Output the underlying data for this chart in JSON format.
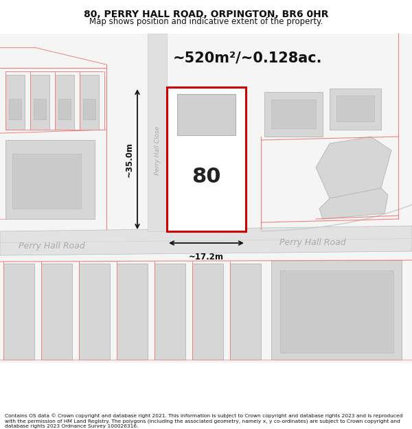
{
  "title": "80, PERRY HALL ROAD, ORPINGTON, BR6 0HR",
  "subtitle": "Map shows position and indicative extent of the property.",
  "footer": "Contains OS data © Crown copyright and database right 2021. This information is subject to Crown copyright and database rights 2023 and is reproduced with the permission of HM Land Registry. The polygons (including the associated geometry, namely x, y co-ordinates) are subject to Crown copyright and database rights 2023 Ordnance Survey 100026316.",
  "area_label": "~520m²/~0.128ac.",
  "width_label": "~17.2m",
  "height_label": "~35.0m",
  "number_label": "80",
  "road_label_left": "Perry Hall Road",
  "road_label_right": "Perry Hall Road",
  "close_label": "Perry Hall Close",
  "bg_color": "#ffffff",
  "map_bg": "#f5f5f5",
  "building_fill": "#d6d6d6",
  "building_edge": "#bbbbbb",
  "plot_fill": "#ffffff",
  "plot_edge": "#cc0000",
  "other_line": "#f08080",
  "dim_line": "#111111",
  "road_gray": "#cccccc",
  "road_text_color": "#aaaaaa"
}
